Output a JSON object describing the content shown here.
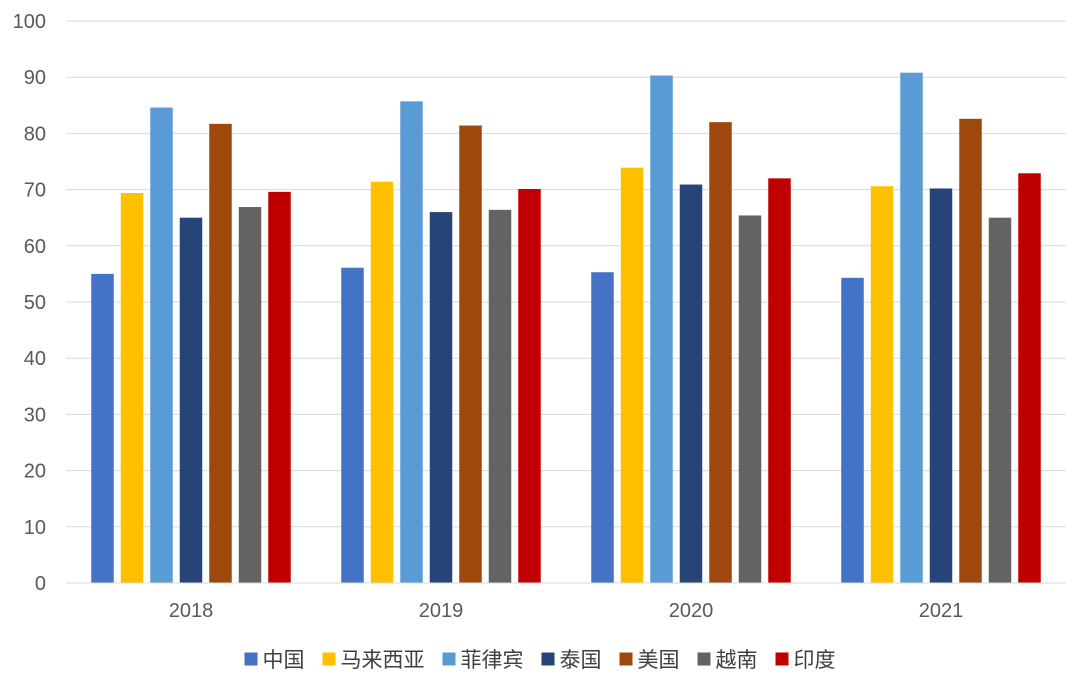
{
  "chart_data": {
    "type": "bar",
    "title": "",
    "xlabel": "",
    "ylabel": "",
    "ylim": [
      0,
      100
    ],
    "yticks": [
      0,
      10,
      20,
      30,
      40,
      50,
      60,
      70,
      80,
      90,
      100
    ],
    "grid": true,
    "legend_position": "bottom",
    "categories": [
      "2018",
      "2019",
      "2020",
      "2021"
    ],
    "series": [
      {
        "name": "中国",
        "color": "#4472C4",
        "values": [
          55.0,
          56.1,
          55.3,
          54.3
        ]
      },
      {
        "name": "马来西亚",
        "color": "#FFC000",
        "values": [
          69.4,
          71.4,
          73.9,
          70.6
        ]
      },
      {
        "name": "菲律宾",
        "color": "#5B9BD5",
        "values": [
          84.6,
          85.7,
          90.3,
          90.8
        ]
      },
      {
        "name": "泰国",
        "color": "#264478",
        "values": [
          65.0,
          66.0,
          70.9,
          70.2
        ]
      },
      {
        "name": "美国",
        "color": "#9E480E",
        "values": [
          81.7,
          81.4,
          82.0,
          82.6
        ]
      },
      {
        "name": "越南",
        "color": "#636363",
        "values": [
          66.9,
          66.4,
          65.4,
          65.0
        ]
      },
      {
        "name": "印度",
        "color": "#C00000",
        "values": [
          69.6,
          70.1,
          72.0,
          72.9
        ]
      }
    ]
  }
}
